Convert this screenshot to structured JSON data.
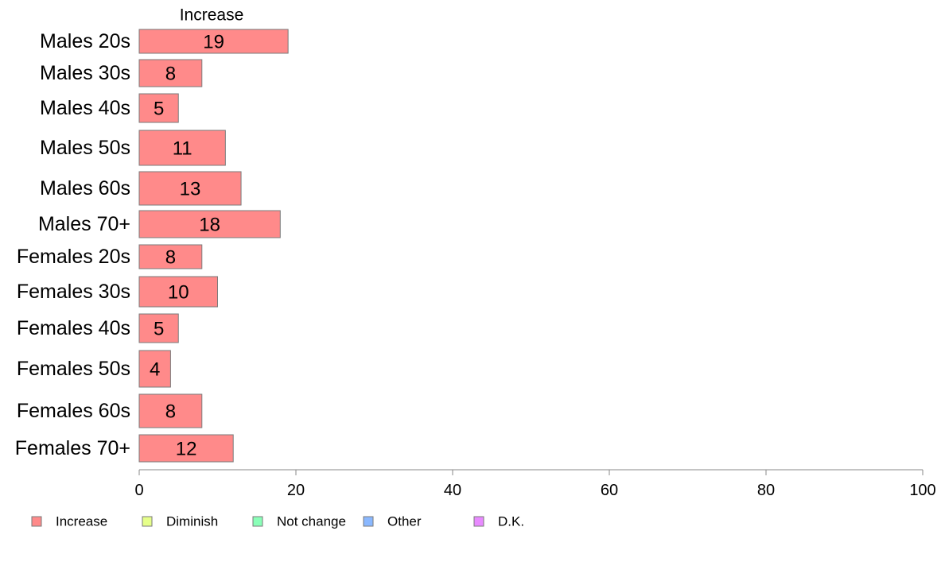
{
  "chart_data": {
    "type": "bar",
    "orientation": "horizontal",
    "stacked": true,
    "title": "",
    "xlabel": "",
    "ylabel": "",
    "xlim": [
      0,
      100
    ],
    "x_ticks": [
      0,
      20,
      40,
      60,
      80,
      100
    ],
    "grid": false,
    "legend_position": "bottom-left",
    "categories": [
      "Males 20s",
      "Males 30s",
      "Males 40s",
      "Males 50s",
      "Males 60s",
      "Males 70+",
      "Females 20s",
      "Females 30s",
      "Females 40s",
      "Females 50s",
      "Females 60s",
      "Females 70+"
    ],
    "series": [
      {
        "name": "Increase",
        "color": "#ff8a8a",
        "values": [
          19,
          8,
          5,
          11,
          13,
          18,
          8,
          10,
          5,
          4,
          8,
          12
        ]
      }
    ],
    "series_header": "Increase",
    "legend": [
      {
        "label": "Increase",
        "color": "#ff8a8a"
      },
      {
        "label": "Diminish",
        "color": "#e6ff8a"
      },
      {
        "label": "Not change",
        "color": "#8affb8"
      },
      {
        "label": "Other",
        "color": "#8ab8ff"
      },
      {
        "label": "D.K.",
        "color": "#e88aff"
      }
    ]
  }
}
